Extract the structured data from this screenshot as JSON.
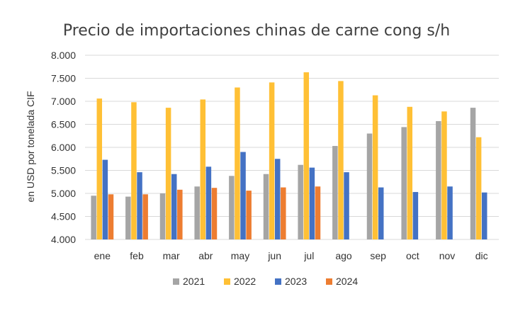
{
  "chart_data": {
    "type": "bar",
    "title": "Precio de importaciones chinas de carne cong s/h",
    "xlabel": "",
    "ylabel": "en USD por tonelada CIF",
    "ylim": [
      4000,
      8000
    ],
    "yticks": [
      4000,
      4500,
      5000,
      5500,
      6000,
      6500,
      7000,
      7500,
      8000
    ],
    "ytick_labels": [
      "4.000",
      "4.500",
      "5.000",
      "5.500",
      "6.000",
      "6.500",
      "7.000",
      "7.500",
      "8.000"
    ],
    "categories": [
      "ene",
      "feb",
      "mar",
      "abr",
      "may",
      "jun",
      "jul",
      "ago",
      "sep",
      "oct",
      "nov",
      "dic"
    ],
    "series": [
      {
        "name": "2021",
        "color": "#a5a5a5",
        "values": [
          4950,
          4930,
          5000,
          5150,
          5380,
          5420,
          5620,
          6030,
          6300,
          6440,
          6570,
          6860
        ]
      },
      {
        "name": "2022",
        "color": "#ffc035",
        "values": [
          7060,
          6980,
          6860,
          7040,
          7300,
          7410,
          7630,
          7440,
          7130,
          6880,
          6780,
          6220
        ]
      },
      {
        "name": "2023",
        "color": "#4472c4",
        "values": [
          5730,
          5460,
          5420,
          5580,
          5900,
          5750,
          5560,
          5460,
          5130,
          5030,
          5150,
          5020
        ]
      },
      {
        "name": "2024",
        "color": "#ed7d31",
        "values": [
          4980,
          4980,
          5080,
          5120,
          5060,
          5130,
          5150,
          null,
          null,
          null,
          null,
          null
        ]
      }
    ],
    "grid": true,
    "gridColor": "#d9d9d9",
    "legend_position": "bottom"
  }
}
